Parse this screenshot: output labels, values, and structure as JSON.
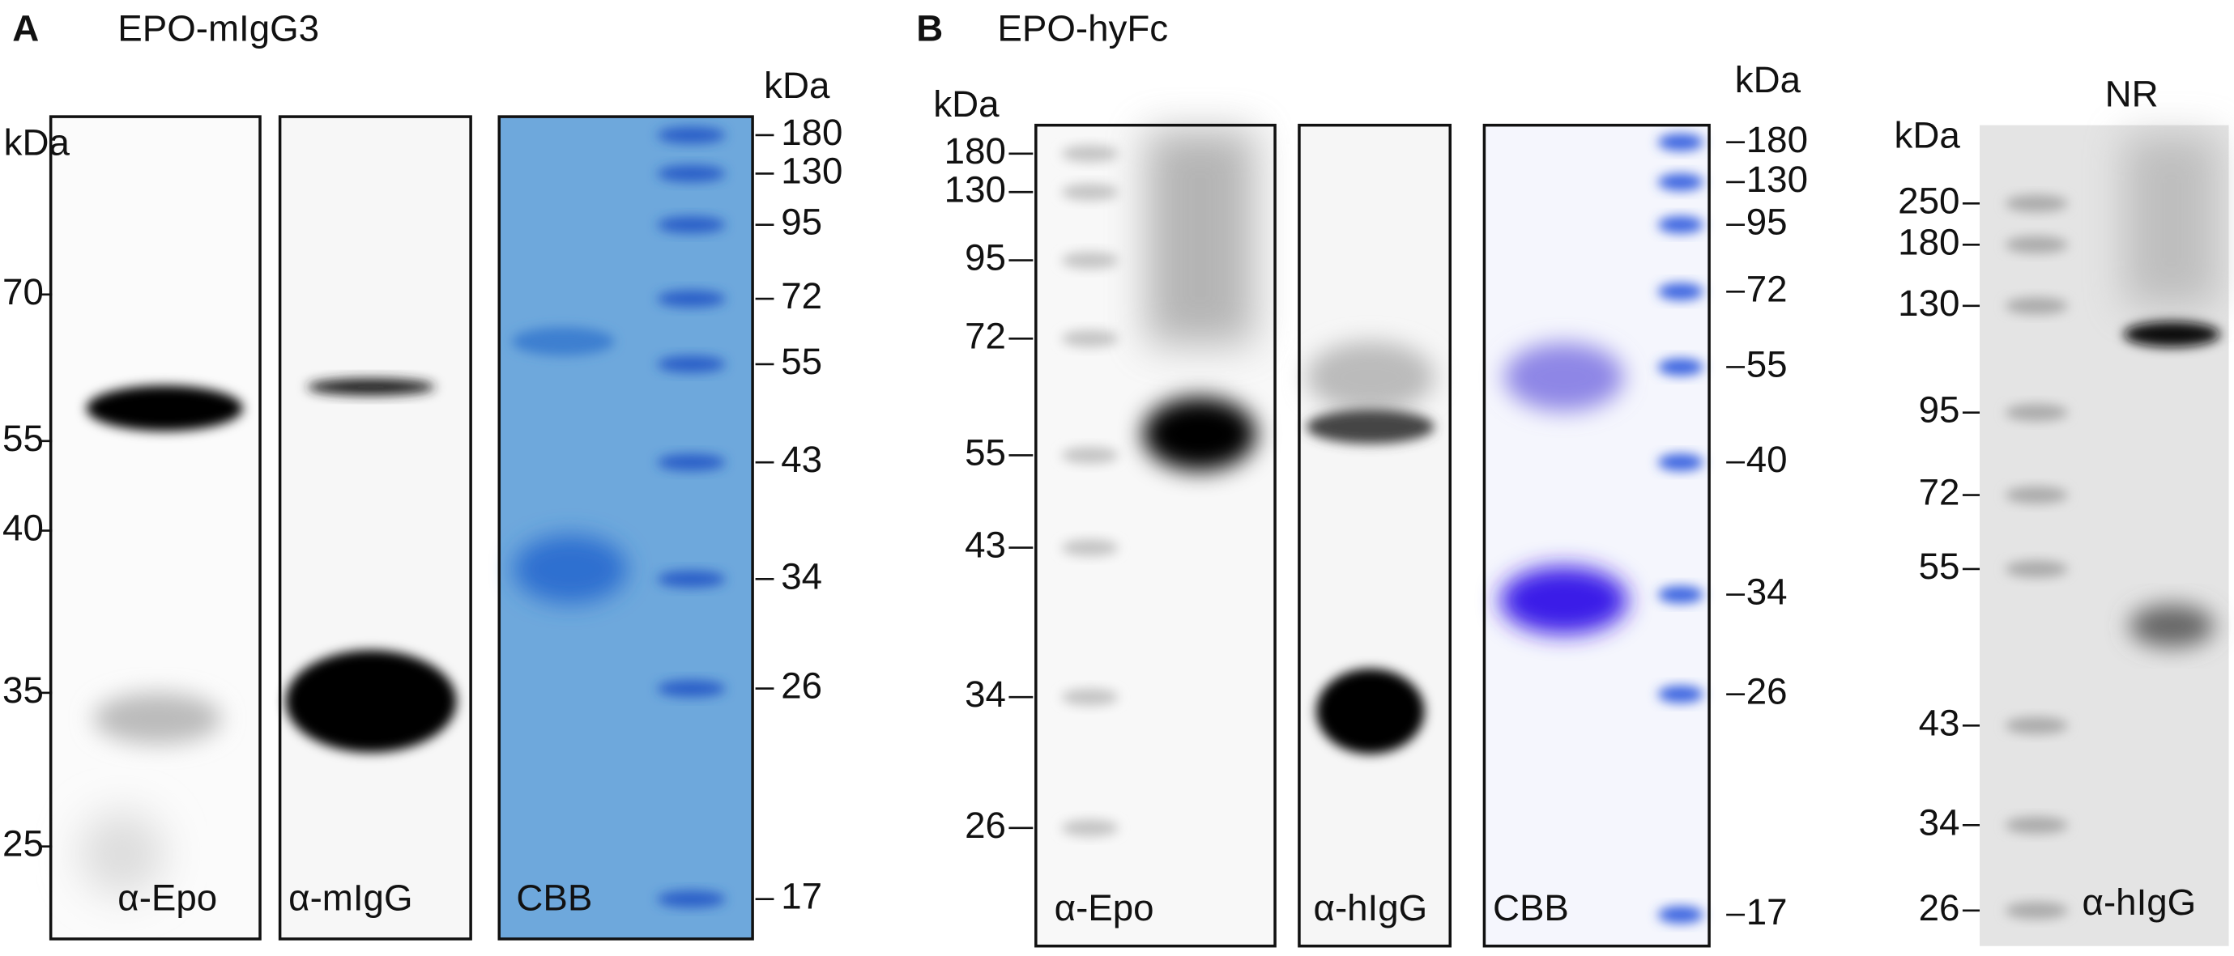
{
  "panels": [
    {
      "letter": "A",
      "title": "EPO-mIgG3",
      "left_markers": {
        "unit": "kDa",
        "labels": [
          "70",
          "55",
          "40",
          "35",
          "25"
        ]
      },
      "blots": [
        {
          "label": "α-Epo"
        },
        {
          "label": "α-mIgG"
        },
        {
          "label": "CBB"
        }
      ],
      "right_markers": {
        "unit": "kDa",
        "labels": [
          "180",
          "130",
          "95",
          "72",
          "55",
          "43",
          "34",
          "26",
          "17"
        ]
      }
    },
    {
      "letter": "B",
      "title": "EPO-hyFc",
      "left_markers": {
        "unit": "kDa",
        "labels": [
          "180",
          "130",
          "95",
          "72",
          "55",
          "43",
          "34",
          "26"
        ]
      },
      "blots": [
        {
          "label": "α-Epo"
        },
        {
          "label": "α-hIgG"
        },
        {
          "label": "CBB"
        }
      ],
      "right_markers": {
        "unit": "kDa",
        "labels": [
          "180",
          "130",
          "95",
          "72",
          "55",
          "40",
          "34",
          "26",
          "17"
        ]
      }
    },
    {
      "header": "NR",
      "left_markers": {
        "unit": "kDa",
        "labels": [
          "250",
          "180",
          "130",
          "95",
          "72",
          "55",
          "43",
          "34",
          "26"
        ]
      },
      "blots": [
        {
          "label": "α-hIgG"
        }
      ]
    }
  ]
}
